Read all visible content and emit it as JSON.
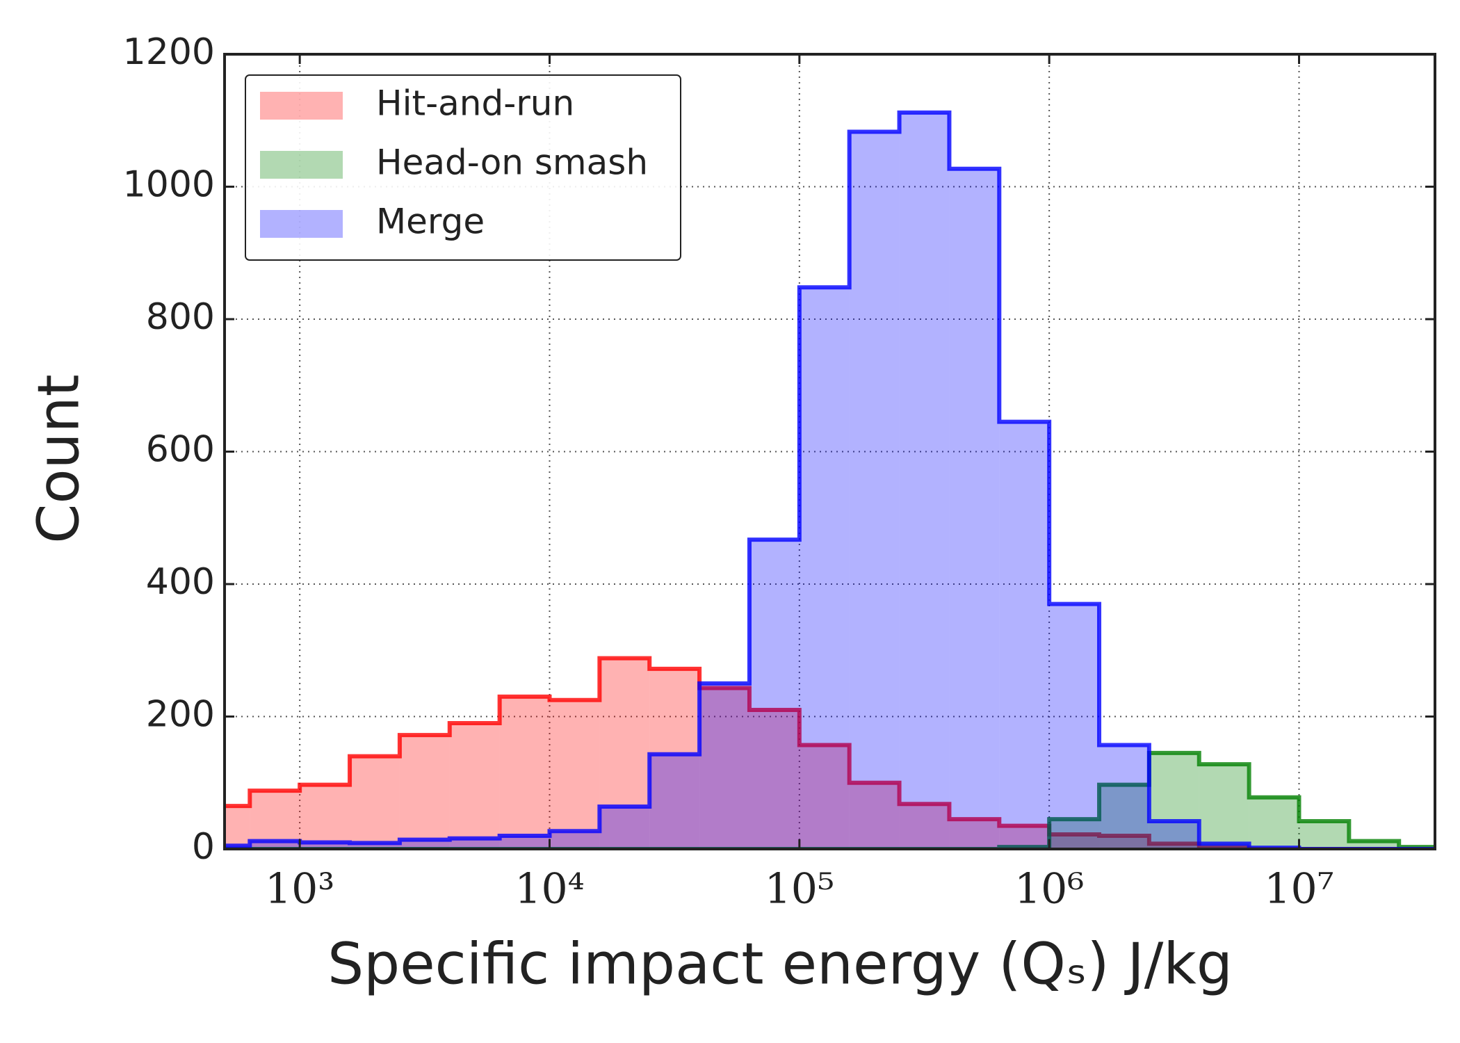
{
  "chart_data": {
    "type": "histogram",
    "xlabel": "Specific impact energy (Qₛ) J/kg",
    "ylabel": "Count",
    "xscale": "log",
    "xlim": [
      500,
      35000000
    ],
    "ylim": [
      0,
      1200
    ],
    "xticks": [
      {
        "value": 1000,
        "label": "10³"
      },
      {
        "value": 10000,
        "label": "10⁴"
      },
      {
        "value": 100000,
        "label": "10⁵"
      },
      {
        "value": 1000000,
        "label": "10⁶"
      },
      {
        "value": 10000000,
        "label": "10⁷"
      }
    ],
    "yticks": [
      0,
      200,
      400,
      600,
      800,
      1000,
      1200
    ],
    "grid": true,
    "legend": "upper left",
    "bins": [
      398.1,
      631.0,
      1000,
      1585,
      2512,
      3981,
      6310,
      10000,
      15849,
      25119,
      39811,
      63096,
      100000,
      158489,
      251189,
      398107,
      630957,
      1000000,
      1584893,
      2511886,
      3981072,
      6309573,
      10000000,
      15848932,
      25118864,
      39810717
    ],
    "series": [
      {
        "name": "Hit-and-run",
        "color": "#ff0000",
        "values": [
          65,
          88,
          97,
          140,
          172,
          190,
          230,
          225,
          288,
          272,
          243,
          210,
          157,
          100,
          68,
          45,
          35,
          22,
          20,
          8,
          2,
          0,
          0,
          0,
          0
        ]
      },
      {
        "name": "Head-on smash",
        "color": "#008000",
        "values": [
          0,
          0,
          0,
          0,
          0,
          0,
          0,
          0,
          0,
          0,
          0,
          0,
          0,
          0,
          0,
          0,
          3,
          45,
          97,
          145,
          128,
          78,
          42,
          12,
          3
        ]
      },
      {
        "name": "Merge",
        "color": "#0000ff",
        "values": [
          5,
          12,
          10,
          9,
          14,
          16,
          20,
          27,
          64,
          143,
          250,
          467,
          848,
          1083,
          1112,
          1027,
          645,
          370,
          157,
          42,
          8,
          2,
          0,
          0,
          0
        ]
      }
    ]
  }
}
